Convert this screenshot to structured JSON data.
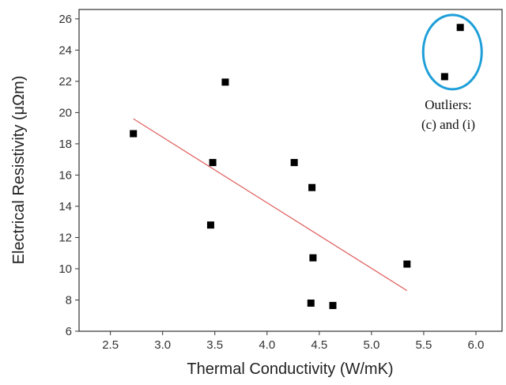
{
  "chart_data": {
    "type": "scatter",
    "title": "",
    "xlabel": "Thermal Conductivity (W/mK)",
    "ylabel": "Electrical Resistivity (μΩm)",
    "xlim": [
      2.2,
      6.25
    ],
    "ylim": [
      6,
      26.6
    ],
    "x_ticks": [
      "2.5",
      "3.0",
      "3.5",
      "4.0",
      "4.5",
      "5.0",
      "5.5",
      "6.0"
    ],
    "y_ticks": [
      "6",
      "8",
      "10",
      "12",
      "14",
      "16",
      "18",
      "20",
      "22",
      "24",
      "26"
    ],
    "grid": false,
    "series": [
      {
        "marker": "square",
        "color": "#000000",
        "points": [
          {
            "x": 2.72,
            "y": 18.65
          },
          {
            "x": 3.46,
            "y": 12.8
          },
          {
            "x": 3.48,
            "y": 16.8
          },
          {
            "x": 3.6,
            "y": 21.95
          },
          {
            "x": 4.26,
            "y": 16.8
          },
          {
            "x": 4.42,
            "y": 7.8
          },
          {
            "x": 4.43,
            "y": 15.2
          },
          {
            "x": 4.44,
            "y": 10.7
          },
          {
            "x": 4.63,
            "y": 7.65
          },
          {
            "x": 5.34,
            "y": 10.3
          },
          {
            "x": 5.7,
            "y": 22.3
          },
          {
            "x": 5.85,
            "y": 25.45
          }
        ]
      }
    ],
    "trendline": {
      "color": "#e06060",
      "points": [
        {
          "x": 2.72,
          "y": 19.6
        },
        {
          "x": 5.34,
          "y": 8.6
        }
      ]
    },
    "outlier_circle_color": "#1e9fd8",
    "annotation": {
      "line1": "Outliers:",
      "line2": "(c) and (i)"
    }
  }
}
